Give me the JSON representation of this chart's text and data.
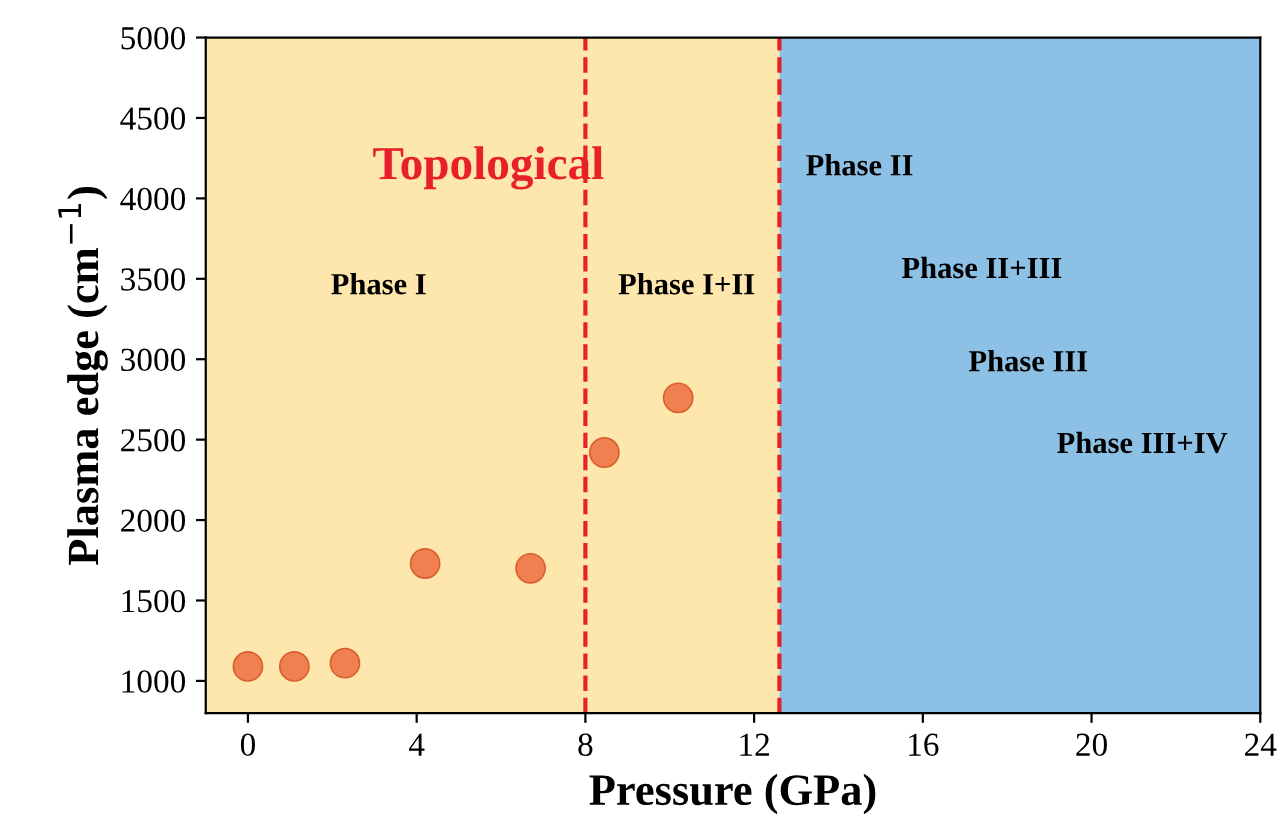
{
  "chart_data": {
    "type": "scatter",
    "xlabel": "Pressure (GPa)",
    "ylabel": "Plasma edge (cm$^{−1}$)",
    "x": [
      0,
      1.1,
      2.3,
      4.2,
      6.7,
      8.45,
      10.2
    ],
    "series": [
      {
        "color": "#f08050",
        "values": [
          1090,
          1090,
          1110,
          1730,
          1700,
          2420,
          2760
        ]
      }
    ],
    "marker": "circle",
    "xlim": [
      -1,
      24
    ],
    "ylim": [
      800,
      5000
    ],
    "xticks": [
      0,
      4,
      8,
      12,
      16,
      20,
      24
    ],
    "yticks": [
      1000,
      1500,
      2000,
      2500,
      3000,
      3500,
      4000,
      4500,
      5000
    ],
    "ref_lines": [
      {
        "axis": "x",
        "value": 8,
        "color": "#e8202a",
        "line_style": "dashed"
      },
      {
        "axis": "x",
        "value": 12.6,
        "color": "#e8202a",
        "line_style": "dashed"
      }
    ],
    "bands": [
      {
        "axis": "x",
        "from": -1,
        "to": 12.6,
        "color": "#fde7ad"
      },
      {
        "axis": "x",
        "from": 12.6,
        "to": 24,
        "color": "#8cc0e4"
      }
    ],
    "annotations": [
      "Topological",
      "Phase I",
      "Phase I+II",
      "Phase II",
      "Phase II+III",
      "Phase III",
      "Phase III+IV"
    ],
    "grid": false,
    "legend": false
  }
}
